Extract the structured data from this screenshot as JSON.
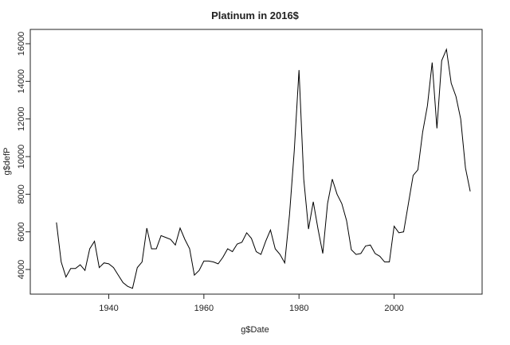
{
  "chart_data": {
    "type": "line",
    "title": "Platinum in 2016$",
    "x_label": "g$Date",
    "y_label": "g$defP",
    "color": "#000000",
    "x": [
      1929,
      1930,
      1931,
      1932,
      1933,
      1934,
      1935,
      1936,
      1937,
      1938,
      1939,
      1940,
      1941,
      1942,
      1943,
      1944,
      1945,
      1946,
      1947,
      1948,
      1949,
      1950,
      1951,
      1952,
      1953,
      1954,
      1955,
      1956,
      1957,
      1958,
      1959,
      1960,
      1961,
      1962,
      1963,
      1964,
      1965,
      1966,
      1967,
      1968,
      1969,
      1970,
      1971,
      1972,
      1973,
      1974,
      1975,
      1976,
      1977,
      1978,
      1979,
      1980,
      1981,
      1982,
      1983,
      1984,
      1985,
      1986,
      1987,
      1988,
      1989,
      1990,
      1991,
      1992,
      1993,
      1994,
      1995,
      1996,
      1997,
      1998,
      1999,
      2000,
      2001,
      2002,
      2003,
      2004,
      2005,
      2006,
      2007,
      2008,
      2009,
      2010,
      2011,
      2012,
      2013,
      2014,
      2015,
      2016
    ],
    "values": [
      6500,
      4400,
      3600,
      4050,
      4050,
      4250,
      3950,
      5100,
      5500,
      4100,
      4350,
      4300,
      4100,
      3700,
      3300,
      3100,
      3000,
      4100,
      4400,
      6200,
      5100,
      5100,
      5800,
      5700,
      5600,
      5300,
      6200,
      5600,
      5100,
      3700,
      3950,
      4450,
      4450,
      4400,
      4300,
      4650,
      5100,
      4950,
      5350,
      5450,
      5950,
      5650,
      4950,
      4800,
      5500,
      6100,
      5100,
      4800,
      4350,
      6900,
      10300,
      14600,
      8800,
      6150,
      7600,
      6150,
      4850,
      7500,
      8800,
      8000,
      7500,
      6600,
      5050,
      4800,
      4850,
      5250,
      5300,
      4850,
      4700,
      4400,
      4400,
      6300,
      5950,
      6000,
      7500,
      9000,
      9300,
      11300,
      12700,
      15000,
      11500,
      15100,
      15700,
      13900,
      13200,
      12000,
      9400,
      8150
    ],
    "xlim": [
      1923.5,
      2018.5
    ],
    "xticks": [
      1940,
      1960,
      1980,
      2000
    ],
    "ylim": [
      2690,
      16760
    ],
    "yticks": [
      4000,
      6000,
      8000,
      10000,
      12000,
      14000,
      16000
    ],
    "grid": false
  }
}
